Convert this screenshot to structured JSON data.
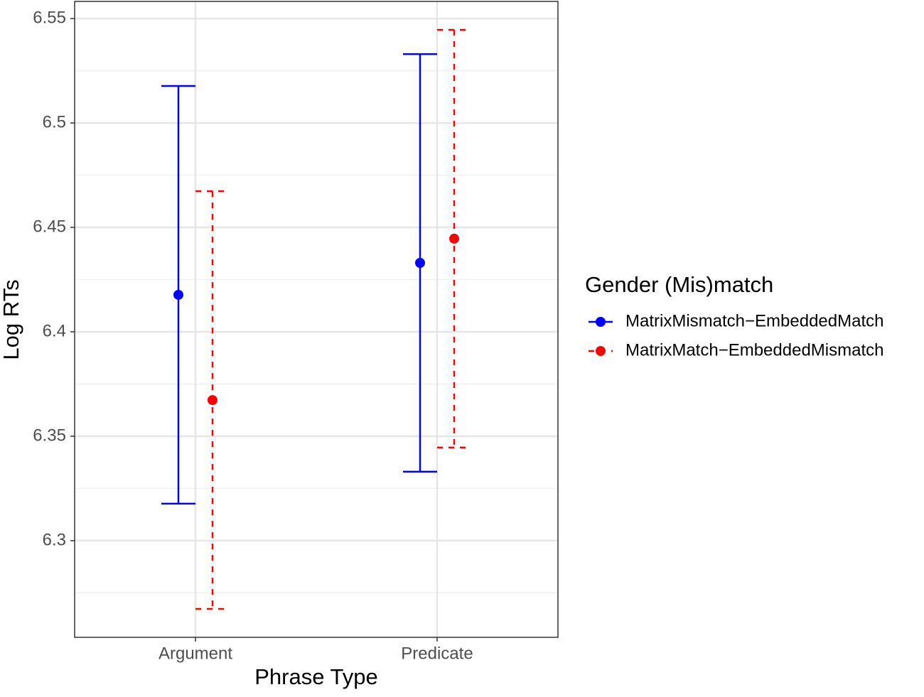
{
  "chart_data": {
    "type": "errorbar",
    "x_label": "Phrase Type",
    "y_label": "Log RTs",
    "categories": [
      "Argument",
      "Predicate"
    ],
    "series": [
      {
        "name": "MatrixMismatch−EmbeddedMatch",
        "color": "#0000ff",
        "linestyle": "solid",
        "values": [
          6.4177,
          6.433
        ],
        "errors": [
          0.1,
          0.1
        ]
      },
      {
        "name": "MatrixMatch−EmbeddedMismatch",
        "color": "#ff0000",
        "linestyle": "dashed",
        "values": [
          6.3673,
          6.4446
        ],
        "errors": [
          0.1,
          0.1
        ]
      }
    ],
    "ylim": [
      6.2537,
      6.5582
    ],
    "yticks": [
      6.3,
      6.35,
      6.4,
      6.45,
      6.5,
      6.55
    ],
    "y_minor_grid": [
      6.275,
      6.325,
      6.375,
      6.425,
      6.475,
      6.525
    ],
    "grid": true,
    "legend_title": "Gender (Mis)match",
    "legend_position": "right"
  }
}
